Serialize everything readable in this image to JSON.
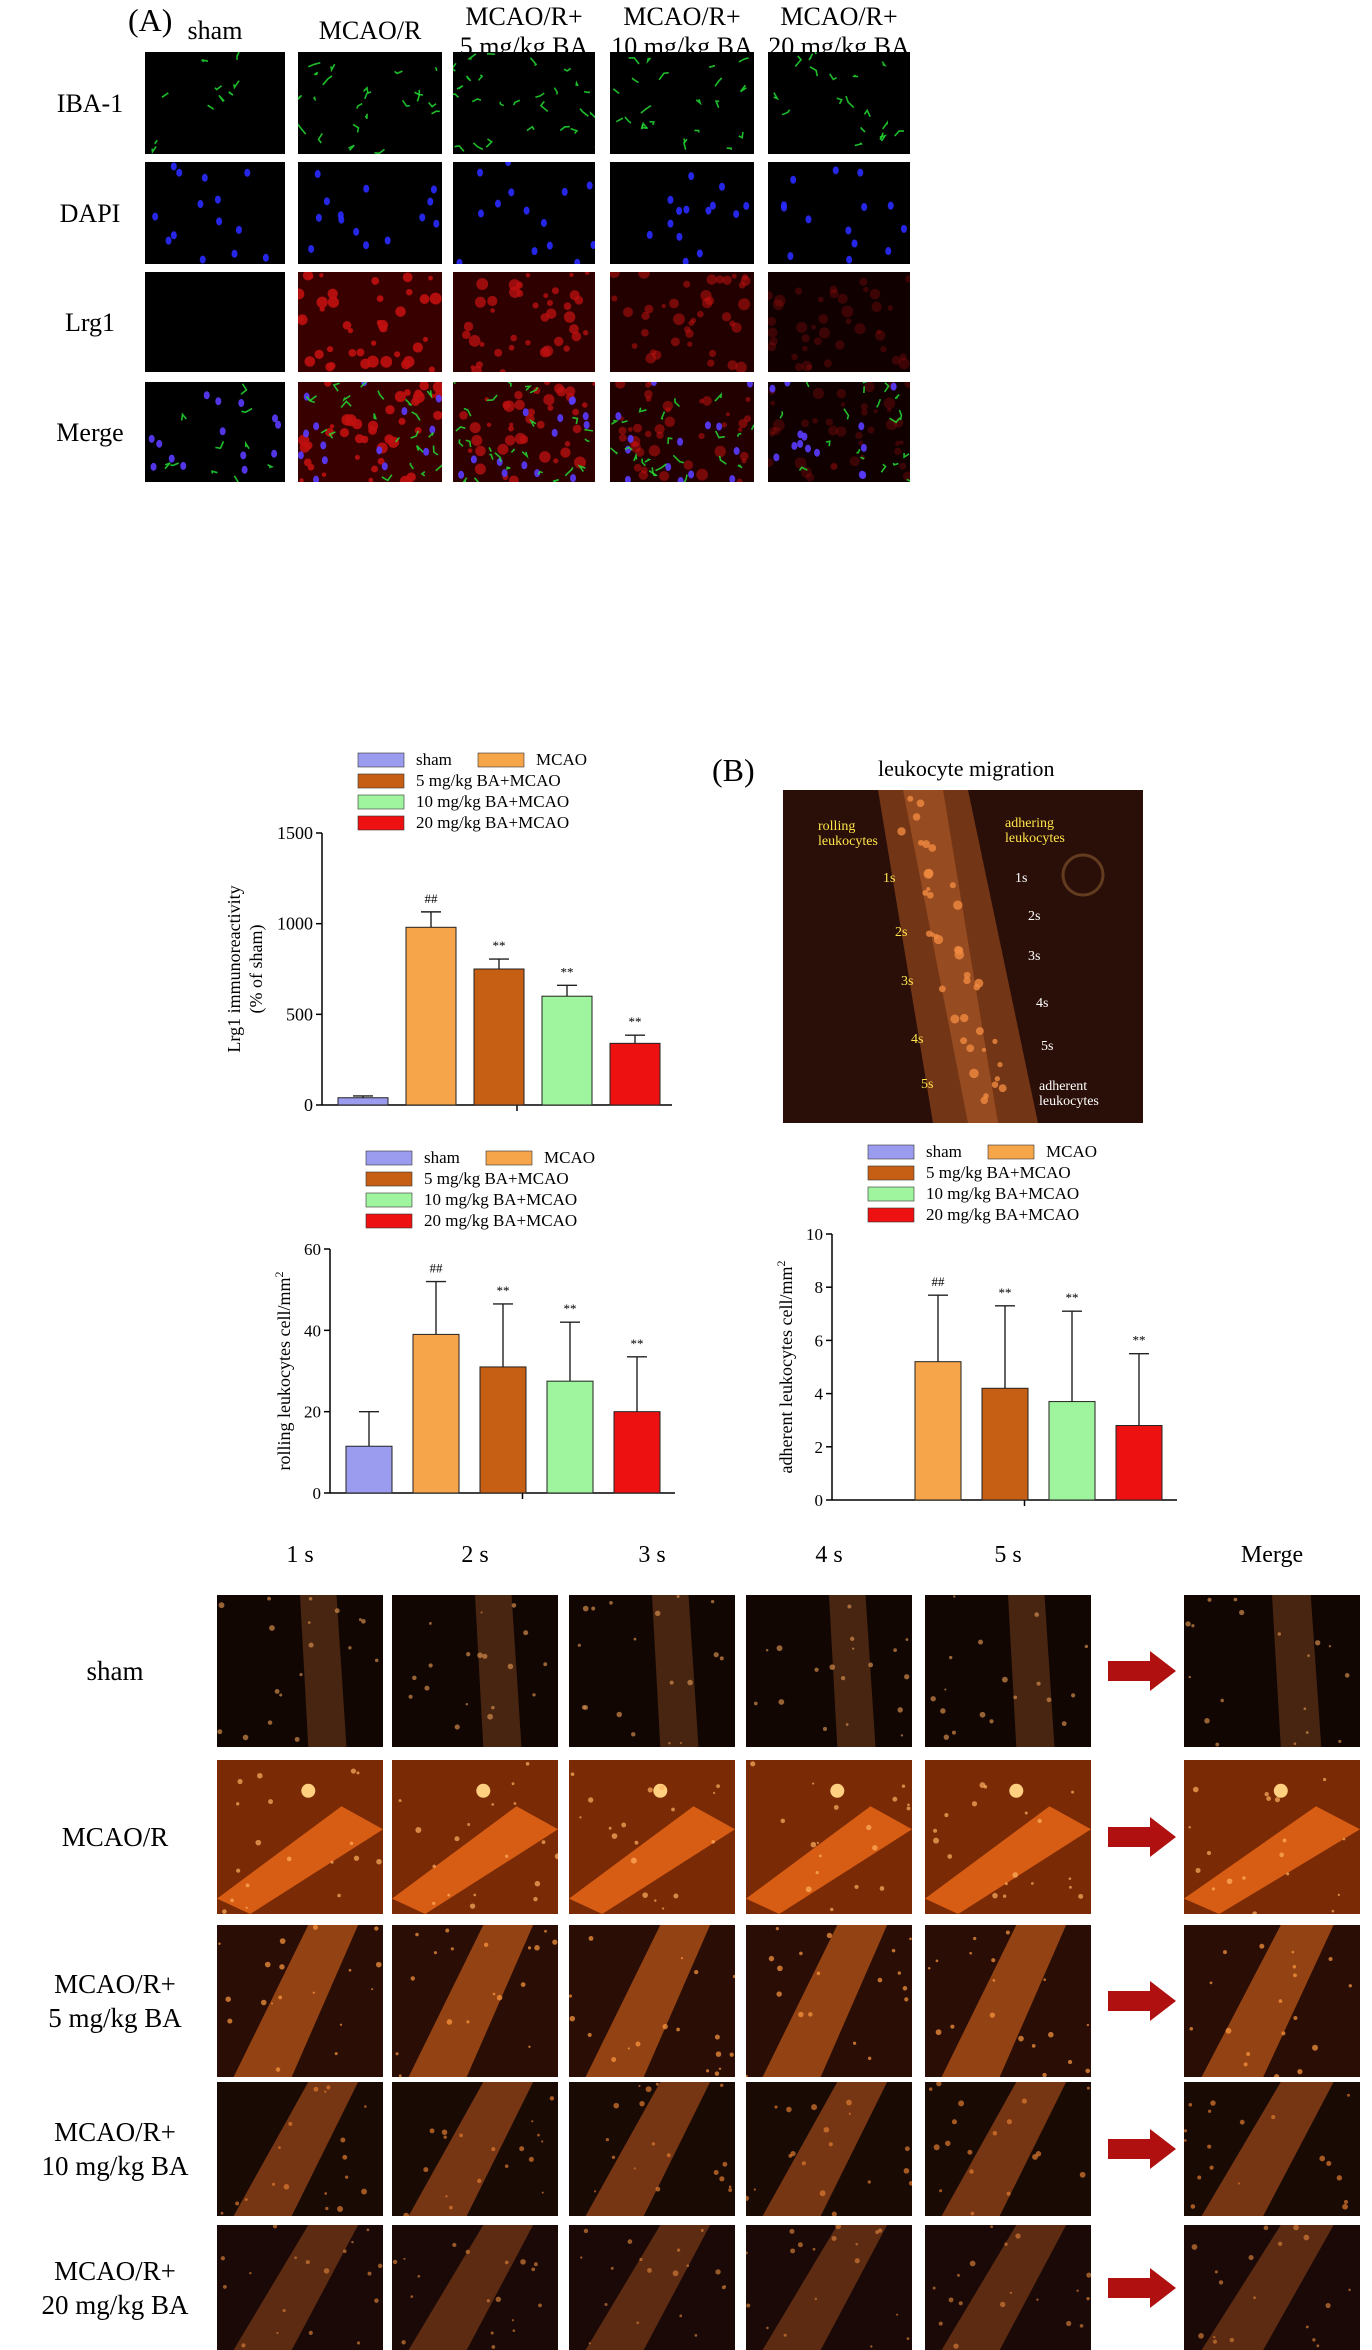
{
  "panel_a": {
    "letter": "(A)",
    "columns": [
      "sham",
      "MCAO/R",
      "MCAO/R+\n5 mg/kg BA",
      "MCAO/R+\n10 mg/kg BA",
      "MCAO/R+\n20 mg/kg BA"
    ],
    "rows": [
      "IBA-1",
      "DAPI",
      "Lrg1",
      "Merge"
    ]
  },
  "panel_b": {
    "letter": "(B)",
    "title": "leukocyte migration",
    "rolling_label": "rolling\nleukocytes",
    "adhering_label": "adhering\nleukocytes",
    "adherent_label": "adherent\nleukocytes",
    "rolling_times": [
      "1s",
      "2s",
      "3s",
      "4s",
      "5s"
    ],
    "adhering_times": [
      "1s",
      "2s",
      "3s",
      "4s",
      "5s"
    ]
  },
  "colors": {
    "sham": "#9b9bf0",
    "MCAO": "#f7a54a",
    "BA5": "#c65f14",
    "BA10": "#9ef59e",
    "BA20": "#ee1111"
  },
  "chart_data": [
    {
      "type": "bar",
      "legend": [
        "sham",
        "MCAO",
        "5 mg/kg BA+MCAO",
        "10 mg/kg BA+MCAO",
        "20 mg/kg BA+MCAO"
      ],
      "values": [
        40,
        980,
        750,
        600,
        340
      ],
      "errors": [
        10,
        85,
        55,
        60,
        45
      ],
      "annotations": [
        "",
        "##",
        "**",
        "**",
        "**"
      ],
      "ylabel": "Lrg1 immunoreactivity\n(% of sham)",
      "ylim": [
        0,
        1500
      ],
      "yticks": [
        0,
        500,
        1000,
        1500
      ]
    },
    {
      "type": "bar",
      "legend": [
        "sham",
        "MCAO",
        "5 mg/kg BA+MCAO",
        "10 mg/kg BA+MCAO",
        "20 mg/kg BA+MCAO"
      ],
      "values": [
        11.5,
        39,
        31,
        27.5,
        20
      ],
      "errors": [
        8.5,
        13,
        15.5,
        14.5,
        13.5
      ],
      "annotations": [
        "",
        "##",
        "**",
        "**",
        "**"
      ],
      "ylabel": "rolling leukocytes cell/mm²",
      "ylim": [
        0,
        60
      ],
      "yticks": [
        0,
        20,
        40,
        60
      ]
    },
    {
      "type": "bar",
      "legend": [
        "sham",
        "MCAO",
        "5 mg/kg BA+MCAO",
        "10 mg/kg BA+MCAO",
        "20 mg/kg BA+MCAO"
      ],
      "values": [
        0,
        5.2,
        4.2,
        3.7,
        2.8
      ],
      "errors": [
        0,
        2.5,
        3.1,
        3.4,
        2.7
      ],
      "annotations": [
        "",
        "##",
        "**",
        "**",
        "**"
      ],
      "ylabel": "adherent leukocytes cell/mm²",
      "ylim": [
        0,
        10
      ],
      "yticks": [
        0,
        2,
        4,
        6,
        8,
        10
      ]
    }
  ],
  "timelapse": {
    "times": [
      "1 s",
      "2 s",
      "3 s",
      "4 s",
      "5 s"
    ],
    "merge": "Merge",
    "rows": [
      "sham",
      "MCAO/R",
      "MCAO/R+\n5 mg/kg BA",
      "MCAO/R+\n10 mg/kg BA",
      "MCAO/R+\n20 mg/kg BA"
    ]
  }
}
